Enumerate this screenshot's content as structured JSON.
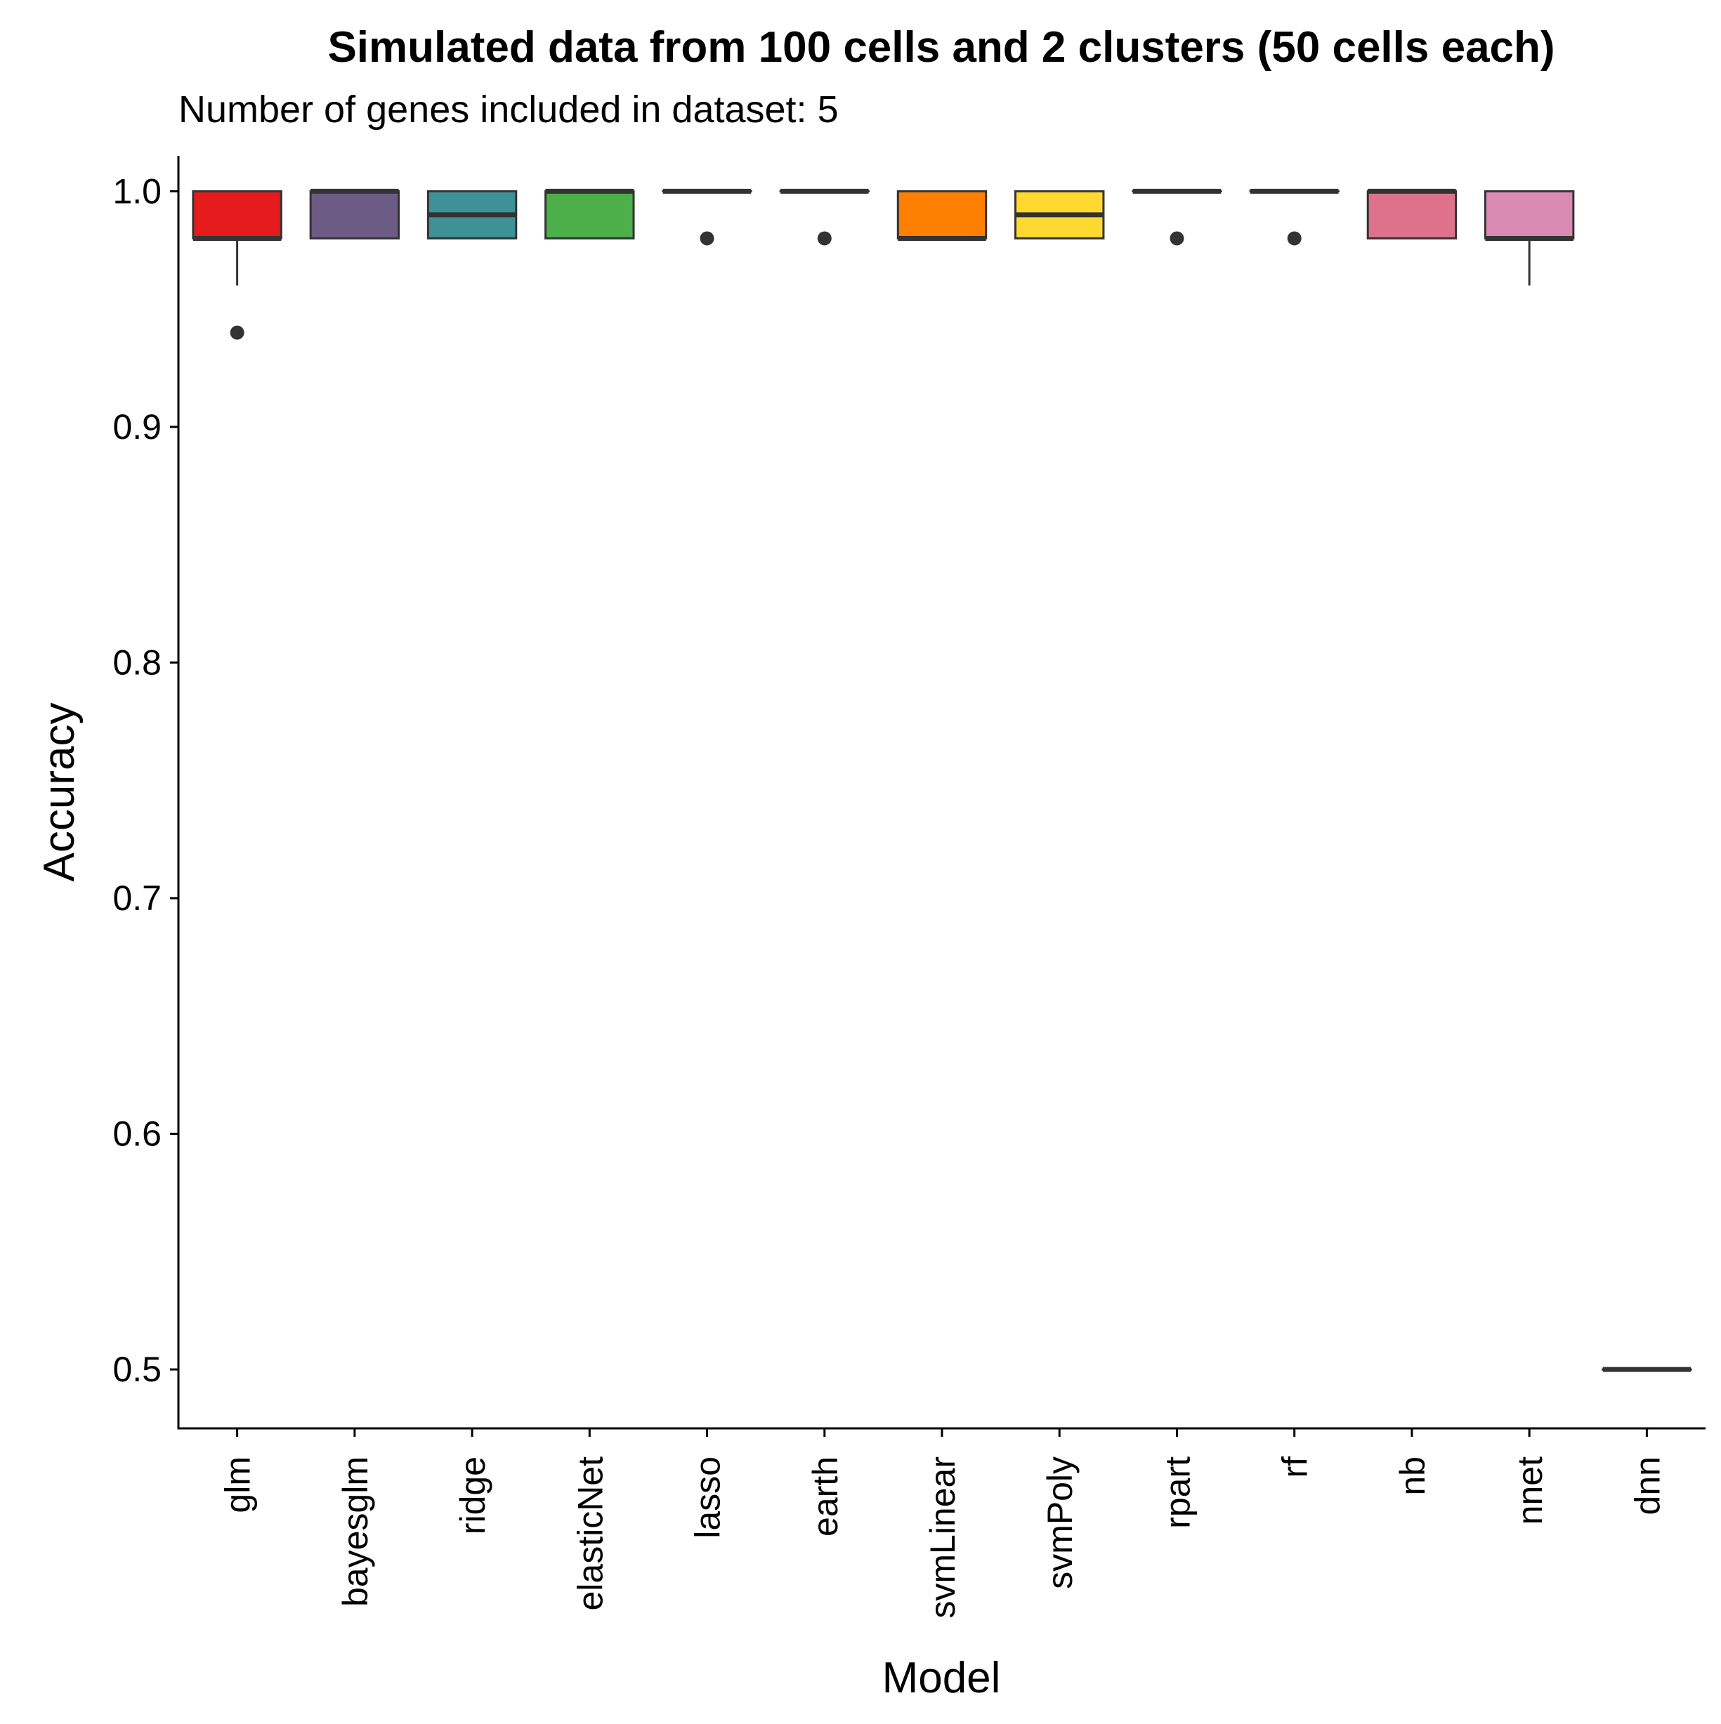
{
  "chart_data": {
    "type": "boxplot",
    "title": "Simulated data from 100 cells and 2 clusters (50 cells each)",
    "subtitle": "Number of genes included in dataset: 5",
    "xlabel": "Model",
    "ylabel": "Accuracy",
    "ylim": [
      0.475,
      1.015
    ],
    "y_ticks": [
      0.5,
      0.6,
      0.7,
      0.8,
      0.9,
      1.0
    ],
    "y_tick_labels": [
      "0.5",
      "0.6",
      "0.7",
      "0.8",
      "0.9",
      "1.0"
    ],
    "grid": false,
    "legend": "none",
    "series": [
      {
        "category": "glm",
        "color": "#E41A1C",
        "q1": 0.98,
        "median": 0.98,
        "q3": 1.0,
        "whisker_low": 0.96,
        "whisker_high": 1.0,
        "outliers": [
          0.94
        ]
      },
      {
        "category": "bayesglm",
        "color": "#6B5B85",
        "q1": 0.98,
        "median": 1.0,
        "q3": 1.0,
        "whisker_low": 0.98,
        "whisker_high": 1.0,
        "outliers": []
      },
      {
        "category": "ridge",
        "color": "#3E9196",
        "q1": 0.98,
        "median": 0.99,
        "q3": 1.0,
        "whisker_low": 0.98,
        "whisker_high": 1.0,
        "outliers": []
      },
      {
        "category": "elasticNet",
        "color": "#4DAF4A",
        "q1": 0.98,
        "median": 1.0,
        "q3": 1.0,
        "whisker_low": 0.98,
        "whisker_high": 1.0,
        "outliers": []
      },
      {
        "category": "lasso",
        "color": "#984EA3",
        "q1": 1.0,
        "median": 1.0,
        "q3": 1.0,
        "whisker_low": 1.0,
        "whisker_high": 1.0,
        "outliers": [
          0.98
        ]
      },
      {
        "category": "earth",
        "color": "#A65628",
        "q1": 1.0,
        "median": 1.0,
        "q3": 1.0,
        "whisker_low": 1.0,
        "whisker_high": 1.0,
        "outliers": [
          0.98
        ]
      },
      {
        "category": "svmLinear",
        "color": "#FF7F00",
        "q1": 0.98,
        "median": 0.98,
        "q3": 1.0,
        "whisker_low": 0.98,
        "whisker_high": 1.0,
        "outliers": []
      },
      {
        "category": "svmPoly",
        "color": "#FFD92F",
        "q1": 0.98,
        "median": 0.99,
        "q3": 1.0,
        "whisker_low": 0.98,
        "whisker_high": 1.0,
        "outliers": []
      },
      {
        "category": "rpart",
        "color": "#A6D854",
        "q1": 1.0,
        "median": 1.0,
        "q3": 1.0,
        "whisker_low": 1.0,
        "whisker_high": 1.0,
        "outliers": [
          0.98
        ]
      },
      {
        "category": "rf",
        "color": "#66C2A5",
        "q1": 1.0,
        "median": 1.0,
        "q3": 1.0,
        "whisker_low": 1.0,
        "whisker_high": 1.0,
        "outliers": [
          0.98
        ]
      },
      {
        "category": "nb",
        "color": "#DE718C",
        "q1": 0.98,
        "median": 1.0,
        "q3": 1.0,
        "whisker_low": 0.98,
        "whisker_high": 1.0,
        "outliers": []
      },
      {
        "category": "nnet",
        "color": "#D98BB3",
        "q1": 0.98,
        "median": 0.98,
        "q3": 1.0,
        "whisker_low": 0.96,
        "whisker_high": 1.0,
        "outliers": []
      },
      {
        "category": "dnn",
        "color": "#999999",
        "q1": 0.5,
        "median": 0.5,
        "q3": 0.5,
        "whisker_low": 0.5,
        "whisker_high": 0.5,
        "outliers": []
      }
    ]
  }
}
